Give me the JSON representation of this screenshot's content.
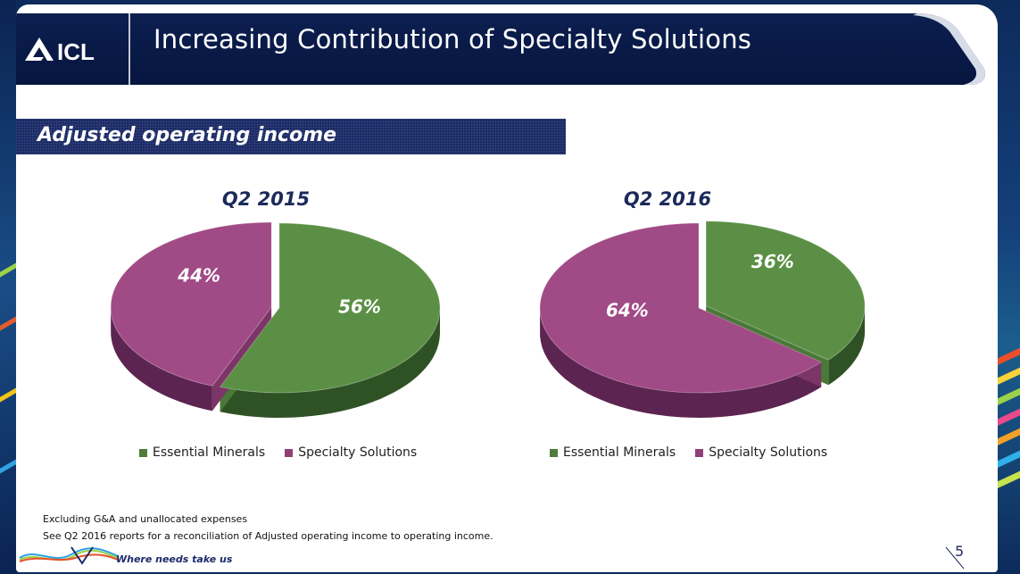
{
  "header": {
    "logo_text": "ICL",
    "title": "Increasing Contribution of Specialty Solutions"
  },
  "section": {
    "label": "Adjusted operating income"
  },
  "chart_data": [
    {
      "type": "pie",
      "title": "Q2 2015",
      "labels": [
        "Essential Minerals",
        "Specialty Solutions"
      ],
      "values": [
        56,
        44
      ],
      "value_labels": [
        "56%",
        "44%"
      ],
      "colors": [
        "#5b8f45",
        "#a04a86"
      ],
      "legend_position": "bottom"
    },
    {
      "type": "pie",
      "title": "Q2 2016",
      "labels": [
        "Essential Minerals",
        "Specialty Solutions"
      ],
      "values": [
        36,
        64
      ],
      "value_labels": [
        "36%",
        "64%"
      ],
      "colors": [
        "#5b8f45",
        "#a04a86"
      ],
      "legend_position": "bottom"
    }
  ],
  "legend": {
    "essential": "Essential Minerals",
    "specialty": "Specialty Solutions",
    "essential_color": "#4e7d3a",
    "specialty_color": "#8f3f78"
  },
  "footnotes": {
    "line1": "Excluding G&A and unallocated expenses",
    "line2": "See Q2 2016 reports for a reconciliation of Adjusted operating income to operating income."
  },
  "footer": {
    "tagline": "Where needs take us",
    "page_number": "5"
  }
}
